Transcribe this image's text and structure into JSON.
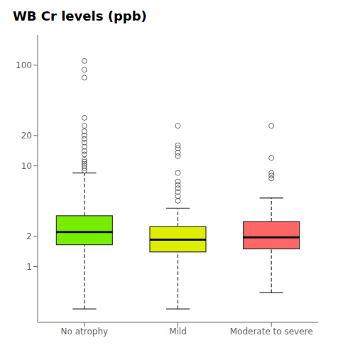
{
  "chart_data": {
    "type": "box",
    "title": "WB Cr levels (ppb)",
    "categories": [
      "No atrophy",
      "Mild",
      "Moderate to severe"
    ],
    "colors": [
      "#77ee00",
      "#ddee00",
      "#ff6666"
    ],
    "boxes": [
      {
        "q1": 1.65,
        "median": 2.2,
        "q3": 3.2,
        "whisker_low": 0.38,
        "whisker_high": 8.5,
        "outliers": [
          9.0,
          9.5,
          10.0,
          10.5,
          11.0,
          11.5,
          13.0,
          14.0,
          15.5,
          17.0,
          18.5,
          20.0,
          22.0,
          25.0,
          30.0,
          75.0,
          90.0,
          110.0
        ]
      },
      {
        "q1": 1.4,
        "median": 1.85,
        "q3": 2.5,
        "whisker_low": 0.38,
        "whisker_high": 3.8,
        "outliers": [
          4.5,
          5.0,
          5.5,
          6.0,
          6.5,
          7.0,
          8.5,
          12.5,
          13.5,
          15.0,
          16.0,
          25.0
        ]
      },
      {
        "q1": 1.5,
        "median": 1.95,
        "q3": 2.8,
        "whisker_low": 0.55,
        "whisker_high": 4.8,
        "outliers": [
          7.5,
          8.0,
          8.5,
          12.0,
          25.0
        ]
      }
    ],
    "log": "y",
    "ylim": [
      0.28,
      200
    ],
    "yticks": [
      1,
      2,
      10,
      20,
      100
    ],
    "grid": false
  }
}
